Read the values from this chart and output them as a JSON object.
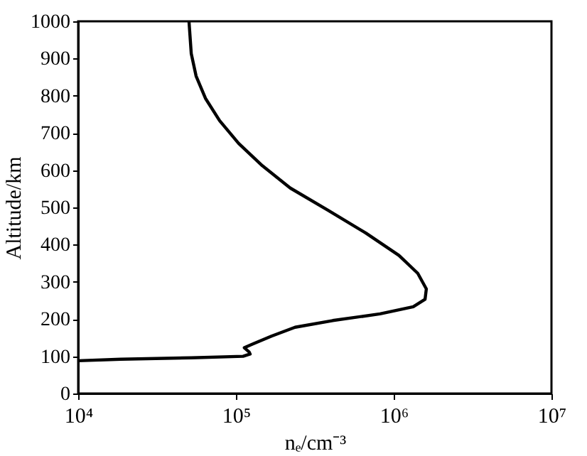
{
  "chart_data": {
    "type": "line",
    "xlabel": "nₑ/cm⁻³",
    "ylabel": "Altitude/km",
    "log": "x",
    "x": [
      50400,
      52100,
      55900,
      64100,
      78800,
      104000,
      147000,
      221000,
      384000,
      666000,
      1080000,
      1420000,
      1610000,
      1580000,
      1330000,
      819000,
      411000,
      237000,
      168000,
      128000,
      113000,
      121000,
      123000,
      111000,
      52100,
      18600,
      10000
    ],
    "series": [
      {
        "color": "#000000",
        "values": [
          1000,
          913,
          853,
          793,
          733,
          672,
          612,
          552,
          492,
          431,
          371,
          323,
          281,
          253,
          233,
          214,
          196,
          178,
          154,
          133,
          123,
          112,
          106,
          100,
          96,
          92,
          88
        ]
      }
    ],
    "xlim": [
      10000,
      10000000
    ],
    "xticks": [
      {
        "value": 10000,
        "label": "10⁴"
      },
      {
        "value": 100000,
        "label": "10⁵"
      },
      {
        "value": 1000000,
        "label": "10⁶"
      },
      {
        "value": 10000000,
        "label": "10⁷"
      }
    ],
    "ylim": [
      0,
      1000
    ],
    "yticks": [
      0,
      100,
      200,
      300,
      400,
      500,
      600,
      700,
      800,
      900,
      1000
    ],
    "grid": false,
    "marker": "none",
    "line_style": "solid"
  }
}
